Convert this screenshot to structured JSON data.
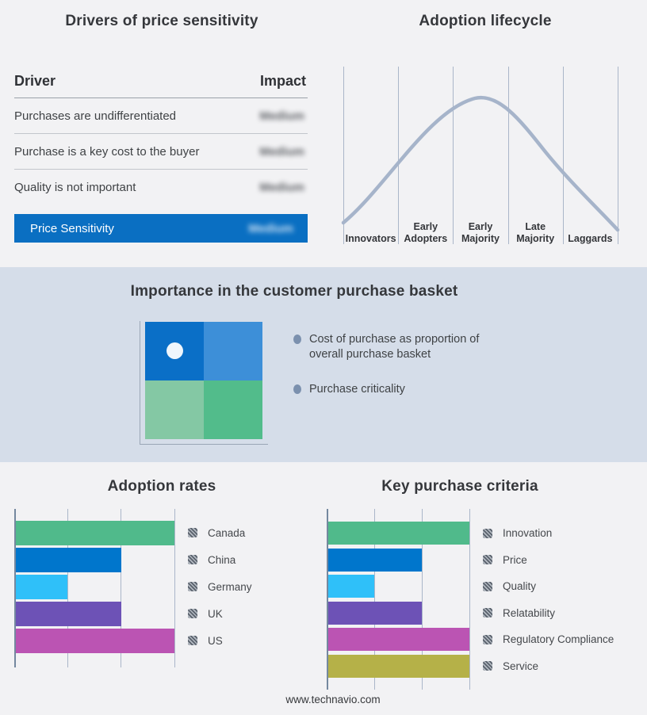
{
  "footer": {
    "text": "www.technavio.com"
  },
  "colors": {
    "page_bg": "#f2f2f4",
    "band_bg": "#d5dde9",
    "highlight_blue": "#0a6fc2",
    "curve": "#a6b4ca",
    "gridline": "#aab6c9",
    "axis": "#74889f"
  },
  "drivers_panel": {
    "title": "Drivers of price sensitivity",
    "columns": {
      "driver": "Driver",
      "impact": "Impact"
    },
    "rows": [
      {
        "driver": "Purchases are undifferentiated",
        "impact": "Medium",
        "impact_obscured": true
      },
      {
        "driver": "Purchase is a key cost to the buyer",
        "impact": "Medium",
        "impact_obscured": true
      },
      {
        "driver": "Quality is not important",
        "impact": "Medium",
        "impact_obscured": true
      }
    ],
    "highlight_row": {
      "driver": "Price Sensitivity",
      "impact": "Medium",
      "impact_obscured": true
    }
  },
  "lifecycle_panel": {
    "title": "Adoption lifecycle",
    "stages": [
      "Innovators",
      "Early Adopters",
      "Early Majority",
      "Late Majority",
      "Laggards"
    ]
  },
  "basket_panel": {
    "title": "Importance in the customer purchase basket",
    "bullets": [
      "Cost of purchase as proportion of overall purchase basket",
      "Purchase criticality"
    ],
    "quadrant_colors": {
      "top_left": "#0a6fc7",
      "top_right": "#3d8fd8",
      "bottom_left": "#84c8a4",
      "bottom_right": "#52bc8b"
    }
  },
  "chart_data": [
    {
      "type": "bar",
      "orientation": "horizontal",
      "title": "Adoption rates",
      "categories": [
        "Canada",
        "China",
        "Germany",
        "UK",
        "US"
      ],
      "values": [
        3,
        2,
        1,
        2,
        3
      ],
      "colors": [
        "#50ba8b",
        "#0076cc",
        "#2fc0f9",
        "#6d52b6",
        "#bb54b3"
      ],
      "xlim": [
        0,
        3
      ],
      "grid": true,
      "legend_position": "right"
    },
    {
      "type": "bar",
      "orientation": "horizontal",
      "title": "Key purchase criteria",
      "categories": [
        "Innovation",
        "Price",
        "Quality",
        "Relatability",
        "Regulatory Compliance",
        "Service"
      ],
      "values": [
        3,
        2,
        1,
        2,
        3,
        3
      ],
      "colors": [
        "#50ba8b",
        "#0076cc",
        "#2fc0f9",
        "#6d52b6",
        "#bb54b3",
        "#b5b148"
      ],
      "xlim": [
        0,
        3
      ],
      "grid": true,
      "legend_position": "right"
    }
  ]
}
